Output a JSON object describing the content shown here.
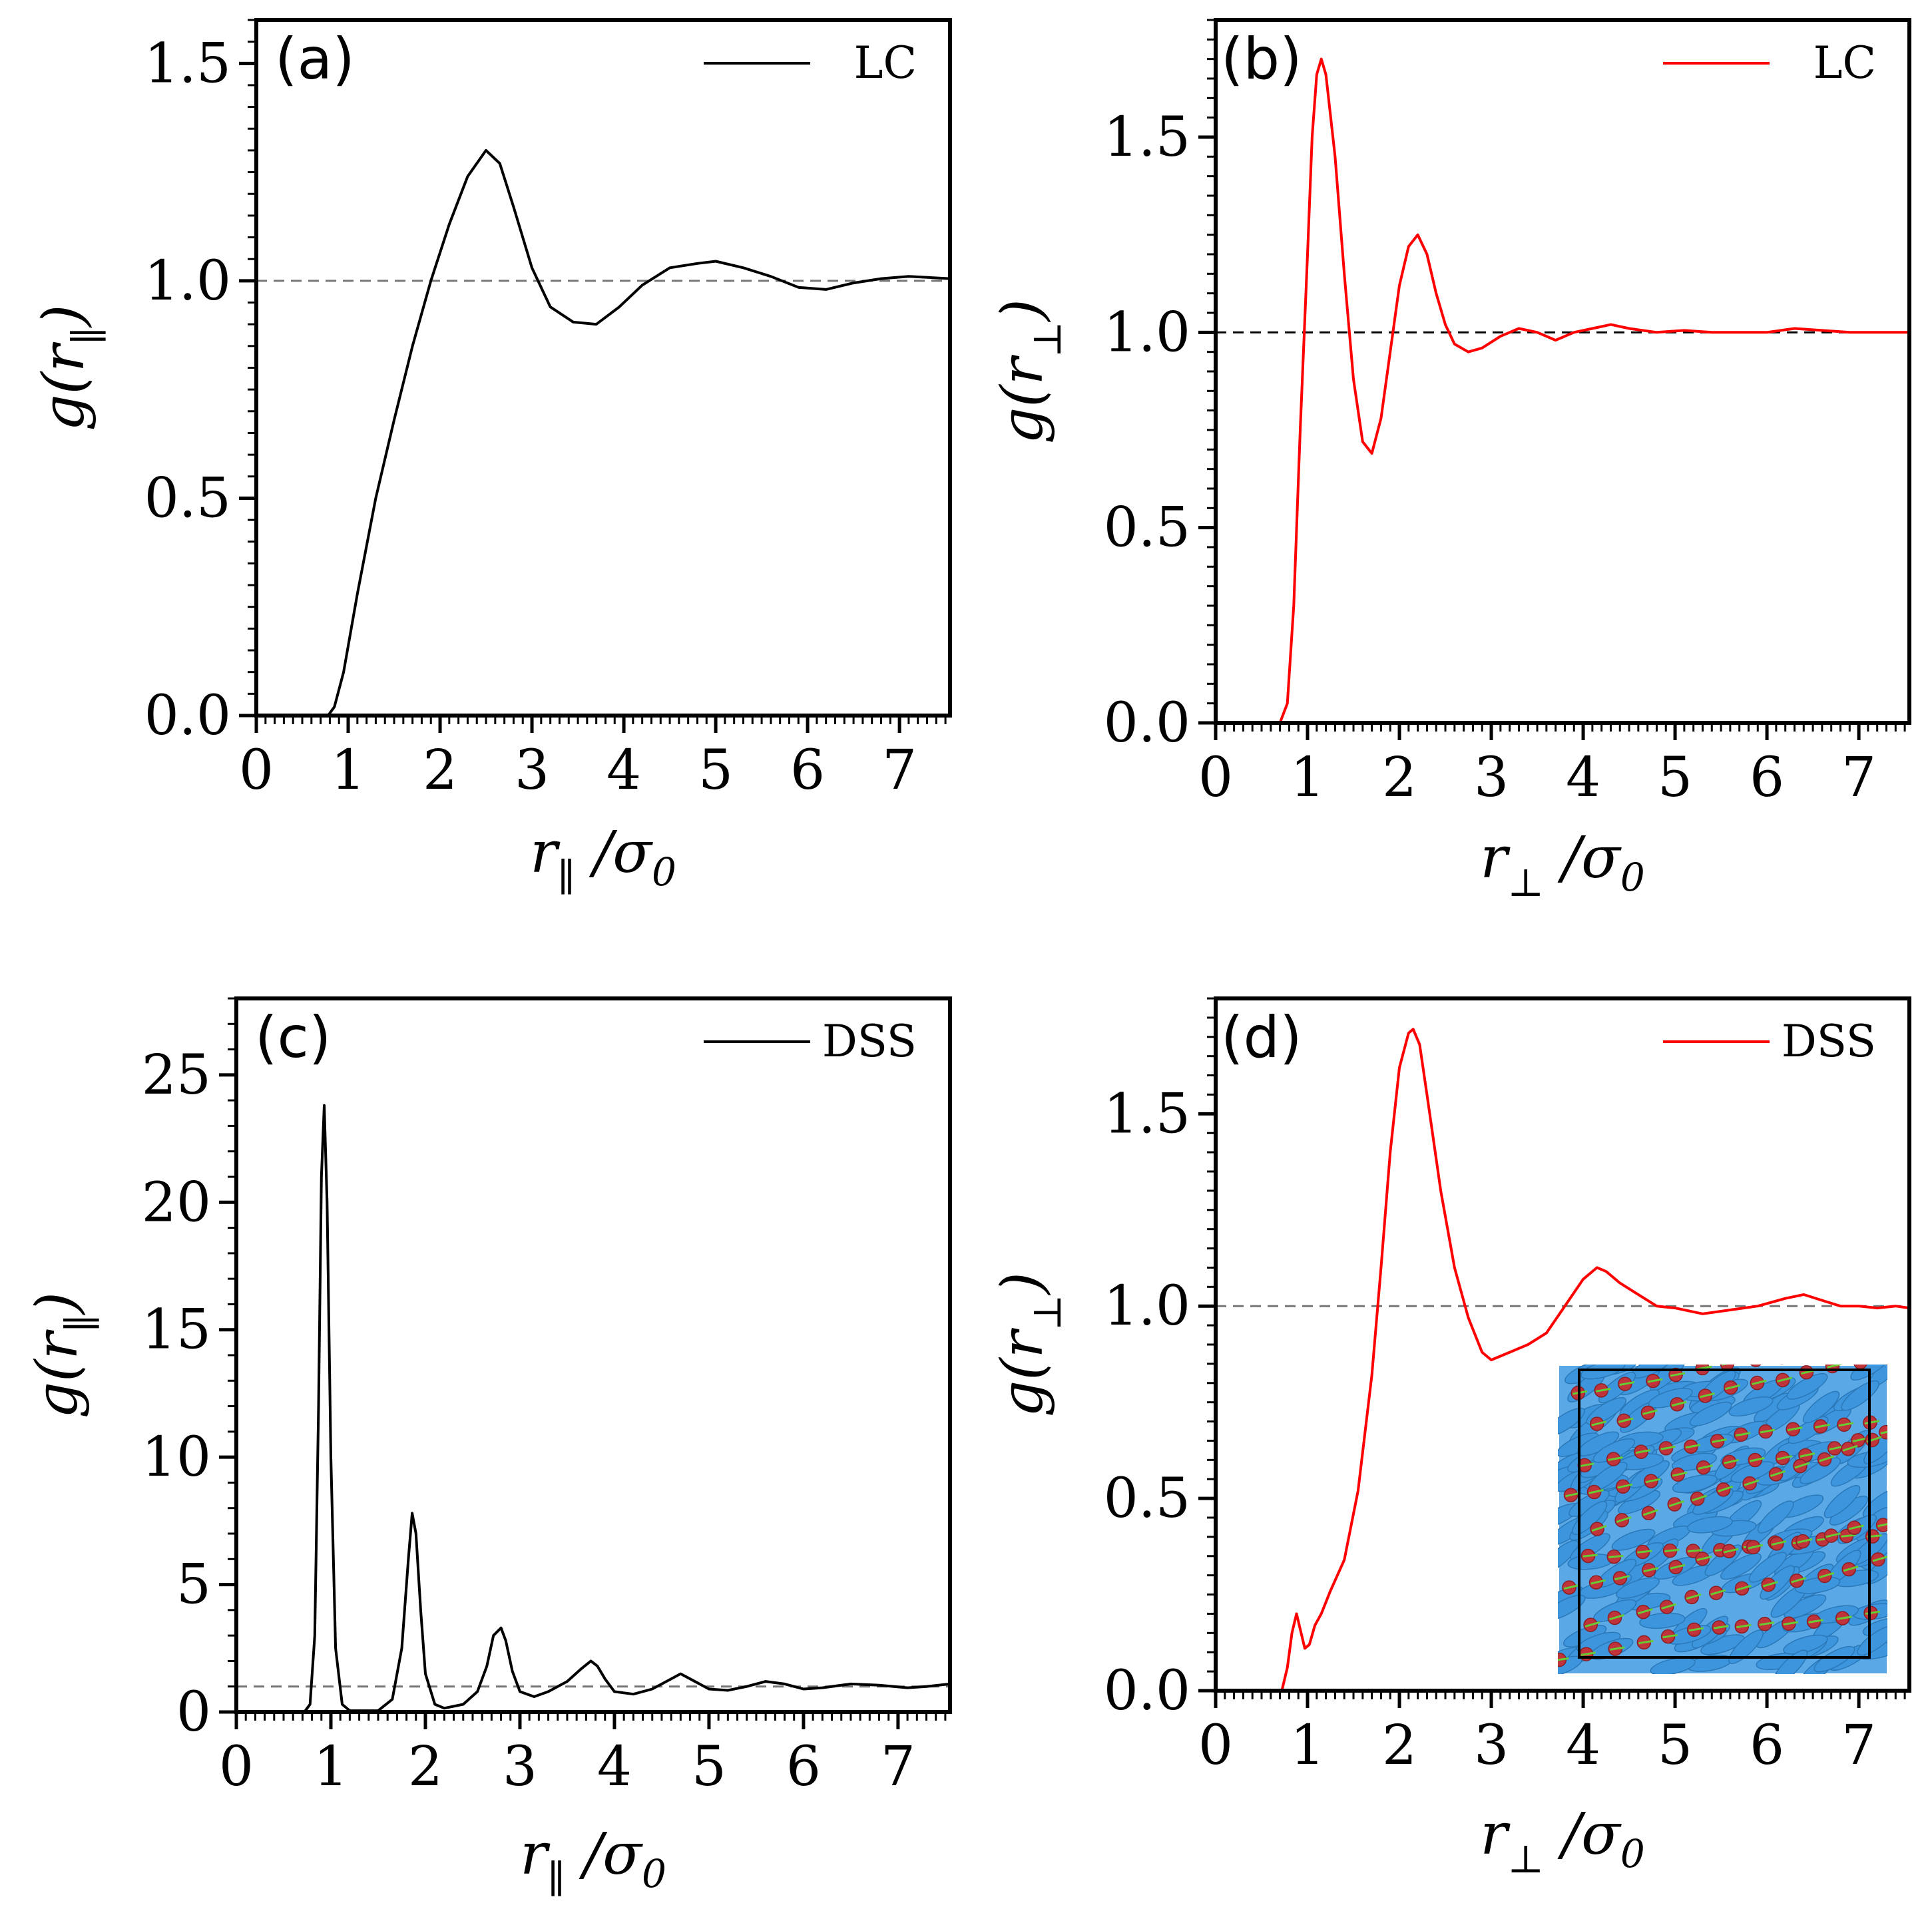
{
  "figure": {
    "description_colors": {
      "black": "#000000",
      "red": "#ff0000",
      "ref_line": "#777777"
    }
  },
  "chart_data": [
    {
      "id": "a",
      "type": "line",
      "panel_label": "(a)",
      "xlabel": "r_∥ / σ_0",
      "ylabel": "g(r_∥)",
      "xlim": [
        0,
        7.55
      ],
      "ylim": [
        0,
        1.6
      ],
      "xticks": [
        "0",
        "1",
        "2",
        "3",
        "4",
        "5",
        "6",
        "7"
      ],
      "yticks": [
        "0.0",
        "0.5",
        "1.0",
        "1.5"
      ],
      "reference_line": 1.0,
      "series": [
        {
          "name": "LC",
          "color": "#000000",
          "x": [
            0,
            0.78,
            0.85,
            0.95,
            1.1,
            1.3,
            1.5,
            1.7,
            1.9,
            2.1,
            2.3,
            2.5,
            2.65,
            2.8,
            3.0,
            3.2,
            3.45,
            3.7,
            3.95,
            4.2,
            4.5,
            4.8,
            5.0,
            5.3,
            5.6,
            5.9,
            6.2,
            6.5,
            6.8,
            7.1,
            7.55
          ],
          "y": [
            0,
            0,
            0.02,
            0.1,
            0.28,
            0.5,
            0.68,
            0.85,
            1.0,
            1.13,
            1.24,
            1.3,
            1.27,
            1.17,
            1.03,
            0.94,
            0.905,
            0.9,
            0.94,
            0.99,
            1.03,
            1.04,
            1.045,
            1.03,
            1.01,
            0.985,
            0.98,
            0.995,
            1.005,
            1.01,
            1.005
          ]
        }
      ],
      "legend": {
        "entries": [
          "LC"
        ],
        "position": "top-right"
      }
    },
    {
      "id": "b",
      "type": "line",
      "panel_label": "(b)",
      "xlabel": "r_⊥ / σ_0",
      "ylabel": "g(r_⊥)",
      "xlim": [
        0,
        7.55
      ],
      "ylim": [
        0,
        1.8
      ],
      "xticks": [
        "0",
        "1",
        "2",
        "3",
        "4",
        "5",
        "6",
        "7"
      ],
      "yticks": [
        "0.0",
        "0.5",
        "1.0",
        "1.5"
      ],
      "reference_line": 1.0,
      "series": [
        {
          "name": "LC",
          "color": "#ff0000",
          "x": [
            0,
            0.7,
            0.78,
            0.85,
            0.92,
            1.0,
            1.05,
            1.1,
            1.15,
            1.2,
            1.3,
            1.4,
            1.5,
            1.6,
            1.7,
            1.8,
            1.9,
            2.0,
            2.1,
            2.2,
            2.3,
            2.4,
            2.5,
            2.6,
            2.75,
            2.9,
            3.1,
            3.3,
            3.5,
            3.7,
            3.9,
            4.1,
            4.3,
            4.5,
            4.8,
            5.1,
            5.4,
            5.7,
            6.0,
            6.3,
            6.6,
            6.9,
            7.2,
            7.55
          ],
          "y": [
            0,
            0,
            0.05,
            0.3,
            0.75,
            1.2,
            1.5,
            1.66,
            1.7,
            1.66,
            1.45,
            1.15,
            0.88,
            0.72,
            0.69,
            0.78,
            0.95,
            1.12,
            1.22,
            1.25,
            1.2,
            1.1,
            1.02,
            0.97,
            0.95,
            0.96,
            0.99,
            1.01,
            1.0,
            0.98,
            1.0,
            1.01,
            1.02,
            1.01,
            1.0,
            1.005,
            1.0,
            1.0,
            1.0,
            1.01,
            1.005,
            1.0,
            1.0,
            1.0
          ]
        }
      ],
      "legend": {
        "entries": [
          "LC"
        ],
        "position": "top-right"
      }
    },
    {
      "id": "c",
      "type": "line",
      "panel_label": "(c)",
      "xlabel": "r_∥ / σ_0",
      "ylabel": "g(r_∥)",
      "xlim": [
        0,
        7.55
      ],
      "ylim": [
        0,
        28
      ],
      "xticks": [
        "0",
        "1",
        "2",
        "3",
        "4",
        "5",
        "6",
        "7"
      ],
      "yticks": [
        "0",
        "5",
        "10",
        "15",
        "20",
        "25"
      ],
      "reference_line": 1.0,
      "series": [
        {
          "name": "DSS",
          "color": "#000000",
          "x": [
            0,
            0.72,
            0.78,
            0.83,
            0.87,
            0.9,
            0.93,
            0.96,
            1.0,
            1.05,
            1.12,
            1.2,
            1.5,
            1.65,
            1.75,
            1.82,
            1.86,
            1.9,
            1.95,
            2.0,
            2.1,
            2.2,
            2.4,
            2.55,
            2.65,
            2.72,
            2.8,
            2.85,
            2.92,
            3.0,
            3.15,
            3.3,
            3.5,
            3.65,
            3.75,
            3.82,
            3.9,
            4.0,
            4.2,
            4.4,
            4.55,
            4.7,
            4.8,
            5.0,
            5.2,
            5.4,
            5.6,
            5.8,
            6.0,
            6.2,
            6.5,
            6.8,
            7.1,
            7.3,
            7.55
          ],
          "y": [
            0,
            0,
            0.3,
            3.0,
            12.0,
            21.0,
            23.8,
            20.0,
            10.0,
            2.5,
            0.3,
            0.05,
            0.05,
            0.5,
            2.5,
            6.0,
            7.8,
            7.0,
            4.0,
            1.5,
            0.3,
            0.15,
            0.3,
            0.8,
            1.8,
            3.0,
            3.3,
            2.8,
            1.6,
            0.8,
            0.6,
            0.8,
            1.2,
            1.7,
            2.0,
            1.8,
            1.3,
            0.8,
            0.7,
            0.9,
            1.2,
            1.5,
            1.3,
            0.9,
            0.85,
            1.0,
            1.2,
            1.1,
            0.9,
            0.95,
            1.1,
            1.05,
            0.95,
            1.0,
            1.1
          ]
        }
      ],
      "legend": {
        "entries": [
          "DSS"
        ],
        "position": "top-right"
      }
    },
    {
      "id": "d",
      "type": "line",
      "panel_label": "(d)",
      "xlabel": "r_⊥ / σ_0",
      "ylabel": "g(r_⊥)",
      "xlim": [
        0,
        7.55
      ],
      "ylim": [
        0,
        1.8
      ],
      "xticks": [
        "0",
        "1",
        "2",
        "3",
        "4",
        "5",
        "6",
        "7"
      ],
      "yticks": [
        "0.0",
        "0.5",
        "1.0",
        "1.5"
      ],
      "reference_line": 1.0,
      "series": [
        {
          "name": "DSS",
          "color": "#ff0000",
          "x": [
            0,
            0.72,
            0.78,
            0.83,
            0.88,
            0.92,
            0.97,
            1.02,
            1.08,
            1.15,
            1.25,
            1.4,
            1.55,
            1.7,
            1.8,
            1.9,
            2.0,
            2.1,
            2.15,
            2.22,
            2.3,
            2.45,
            2.6,
            2.75,
            2.9,
            3.0,
            3.2,
            3.4,
            3.6,
            3.8,
            4.0,
            4.15,
            4.25,
            4.4,
            4.6,
            4.8,
            5.0,
            5.3,
            5.6,
            5.9,
            6.2,
            6.4,
            6.6,
            6.8,
            7.0,
            7.2,
            7.4,
            7.55
          ],
          "y": [
            0,
            0,
            0.06,
            0.15,
            0.2,
            0.16,
            0.11,
            0.12,
            0.17,
            0.2,
            0.26,
            0.34,
            0.52,
            0.82,
            1.1,
            1.4,
            1.62,
            1.71,
            1.72,
            1.68,
            1.55,
            1.3,
            1.1,
            0.97,
            0.88,
            0.86,
            0.88,
            0.9,
            0.93,
            1.0,
            1.07,
            1.1,
            1.09,
            1.06,
            1.03,
            1.0,
            0.995,
            0.98,
            0.99,
            1.0,
            1.02,
            1.03,
            1.015,
            1.0,
            1.0,
            0.995,
            1.0,
            0.995
          ]
        }
      ],
      "legend": {
        "entries": [
          "DSS"
        ],
        "position": "top-right"
      },
      "inset": {
        "kind": "simulation snapshot",
        "colors": {
          "ellipsoid": "#3d96dd",
          "sphere": "#c0333a",
          "arrow": "#66cc33"
        }
      }
    }
  ]
}
